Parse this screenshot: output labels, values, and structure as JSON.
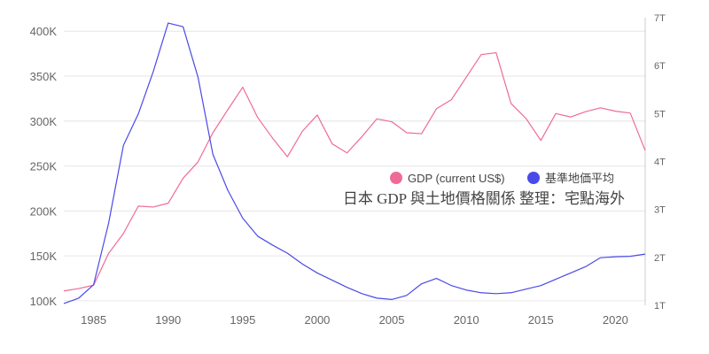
{
  "chart_data": {
    "type": "line",
    "x_ticks": [
      "1985",
      "1990",
      "1995",
      "2000",
      "2005",
      "2010",
      "2015",
      "2020"
    ],
    "left_axis": {
      "ylim": [
        95000,
        415000
      ],
      "ticks": [
        {
          "value": 100000,
          "label": "100K"
        },
        {
          "value": 150000,
          "label": "150K"
        },
        {
          "value": 200000,
          "label": "200K"
        },
        {
          "value": 250000,
          "label": "250K"
        },
        {
          "value": 300000,
          "label": "300K"
        },
        {
          "value": 350000,
          "label": "350K"
        },
        {
          "value": 400000,
          "label": "400K"
        }
      ]
    },
    "right_axis": {
      "ylim": [
        1.0,
        7.0
      ],
      "ticks": [
        {
          "value": 1,
          "label": "1T"
        },
        {
          "value": 2,
          "label": "2T"
        },
        {
          "value": 3,
          "label": "3T"
        },
        {
          "value": 4,
          "label": "4T"
        },
        {
          "value": 5,
          "label": "5T"
        },
        {
          "value": 6,
          "label": "6T"
        },
        {
          "value": 7,
          "label": "7T"
        }
      ]
    },
    "series": [
      {
        "name": "GDP (current US$)",
        "axis": "right",
        "color": "#ef6b97",
        "x": [
          1983,
          1984,
          1985,
          1986,
          1987,
          1988,
          1989,
          1990,
          1991,
          1992,
          1993,
          1994,
          1995,
          1996,
          1997,
          1998,
          1999,
          2000,
          2001,
          2002,
          2003,
          2004,
          2005,
          2006,
          2007,
          2008,
          2009,
          2010,
          2011,
          2012,
          2013,
          2014,
          2015,
          2016,
          2017,
          2018,
          2019,
          2020,
          2021,
          2022
        ],
        "values": [
          1.3,
          1.35,
          1.42,
          2.08,
          2.5,
          3.07,
          3.05,
          3.13,
          3.65,
          3.99,
          4.6,
          5.08,
          5.55,
          4.92,
          4.49,
          4.1,
          4.63,
          4.97,
          4.37,
          4.18,
          4.52,
          4.89,
          4.83,
          4.6,
          4.58,
          5.1,
          5.29,
          5.76,
          6.23,
          6.27,
          5.21,
          4.9,
          4.44,
          5.0,
          4.93,
          5.04,
          5.12,
          5.05,
          5.01,
          4.23
        ]
      },
      {
        "name": "基準地価平均",
        "axis": "left",
        "color": "#4a4ae8",
        "x": [
          1983,
          1984,
          1985,
          1986,
          1987,
          1988,
          1989,
          1990,
          1991,
          1992,
          1993,
          1994,
          1995,
          1996,
          1997,
          1998,
          1999,
          2000,
          2001,
          2002,
          2003,
          2004,
          2005,
          2006,
          2007,
          2008,
          2009,
          2010,
          2011,
          2012,
          2013,
          2014,
          2015,
          2016,
          2017,
          2018,
          2019,
          2020,
          2021,
          2022
        ],
        "values": [
          97000,
          103000,
          118000,
          186000,
          273000,
          308000,
          355000,
          409000,
          405000,
          349000,
          263000,
          223000,
          192000,
          172000,
          162000,
          153000,
          141000,
          131000,
          123000,
          115000,
          108000,
          103000,
          101500,
          106000,
          119000,
          125000,
          117000,
          112000,
          109000,
          108000,
          109000,
          113000,
          117000,
          124000,
          131000,
          138000,
          148000,
          149000,
          149500,
          152000
        ]
      }
    ],
    "annotation": "日本 GDP 與土地價格關係 整理：宅點海外",
    "legend_position": "center-right",
    "grid": true
  }
}
